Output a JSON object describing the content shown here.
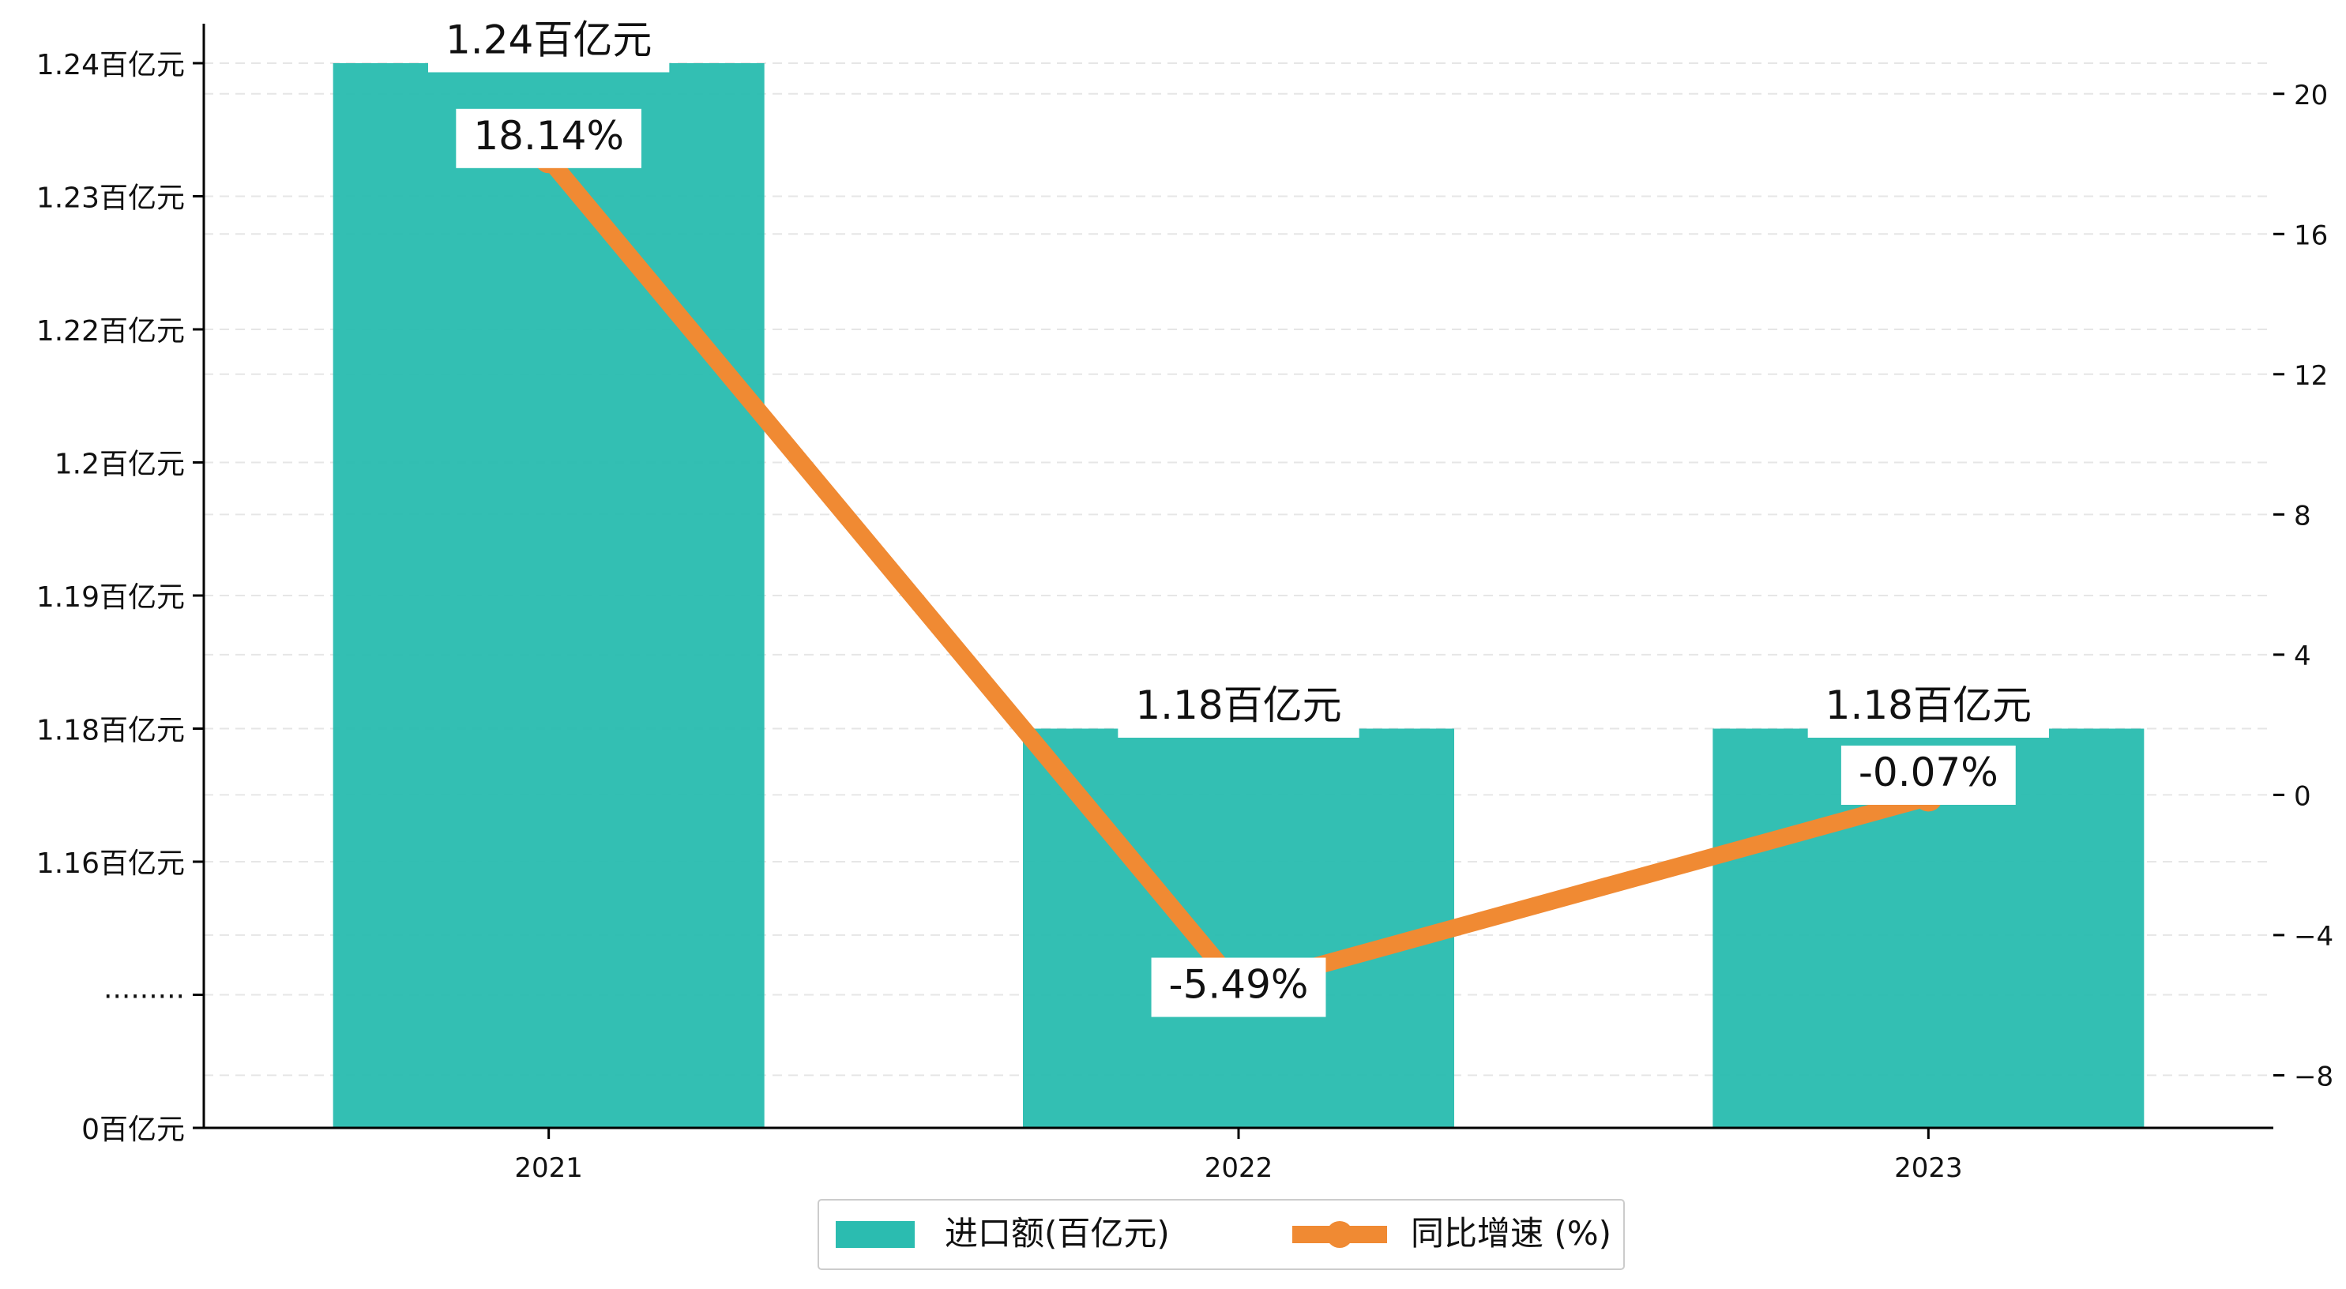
{
  "chart_data": {
    "type": "bar+line",
    "categories": [
      "2021",
      "2022",
      "2023"
    ],
    "series": [
      {
        "name": "进口额(百亿元)",
        "kind": "bar",
        "axis": "left",
        "values": [
          1.24,
          1.18,
          1.18
        ],
        "labels": [
          "1.24百亿元",
          "1.18百亿元",
          "1.18百亿元"
        ],
        "color": "#2bbcb0"
      },
      {
        "name": "同比增速 (%)",
        "kind": "line",
        "axis": "right",
        "values": [
          18.14,
          -5.49,
          -0.07
        ],
        "labels": [
          "18.14%",
          "-5.49%",
          "-0.07%"
        ],
        "color": "#f08a33"
      }
    ],
    "left_axis": {
      "ticks": [
        "0百亿元",
        "·········",
        "1.16百亿元",
        "1.18百亿元",
        "1.19百亿元",
        "1.2百亿元",
        "1.22百亿元",
        "1.23百亿元",
        "1.24百亿元"
      ]
    },
    "right_axis": {
      "ticks": [
        -8,
        -4,
        0,
        4,
        8,
        12,
        16,
        20
      ],
      "range": [
        -9.5,
        22
      ]
    },
    "grid": "horizontal-dashed",
    "legend": "bottom-center"
  }
}
